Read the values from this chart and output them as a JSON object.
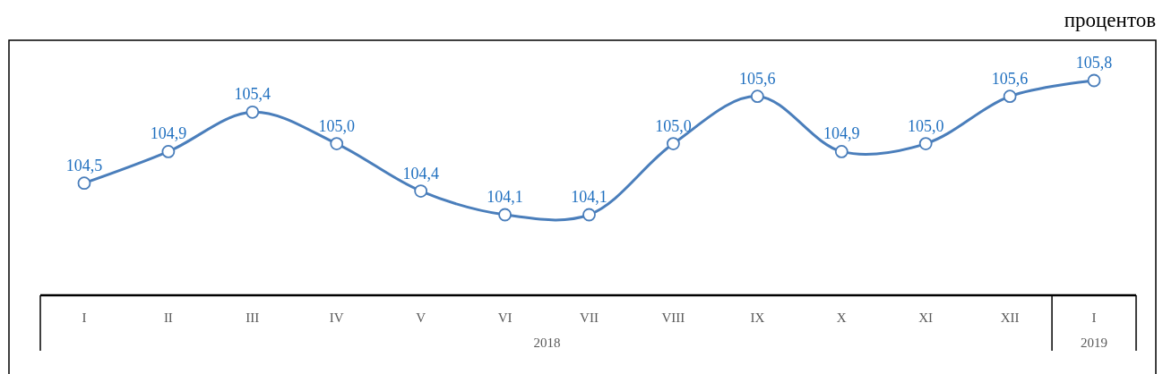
{
  "chart_data": {
    "type": "line",
    "categories": [
      "I",
      "II",
      "III",
      "IV",
      "V",
      "VI",
      "VII",
      "VIII",
      "IX",
      "X",
      "XI",
      "XII",
      "I"
    ],
    "series": [
      {
        "color": "#4a7ebb",
        "values": [
          104.5,
          104.9,
          105.4,
          105.0,
          104.4,
          104.1,
          104.1,
          105.0,
          105.6,
          104.9,
          105.0,
          105.6,
          105.8
        ],
        "value_labels": [
          "104,5",
          "104,9",
          "105,4",
          "105,0",
          "104,4",
          "104,1",
          "104,1",
          "105,0",
          "105,6",
          "104,9",
          "105,0",
          "105,6",
          "105,8"
        ]
      }
    ],
    "marker": "circle",
    "line_style": "solid",
    "annotations": [
      "процентов",
      "2018",
      "2019"
    ]
  }
}
